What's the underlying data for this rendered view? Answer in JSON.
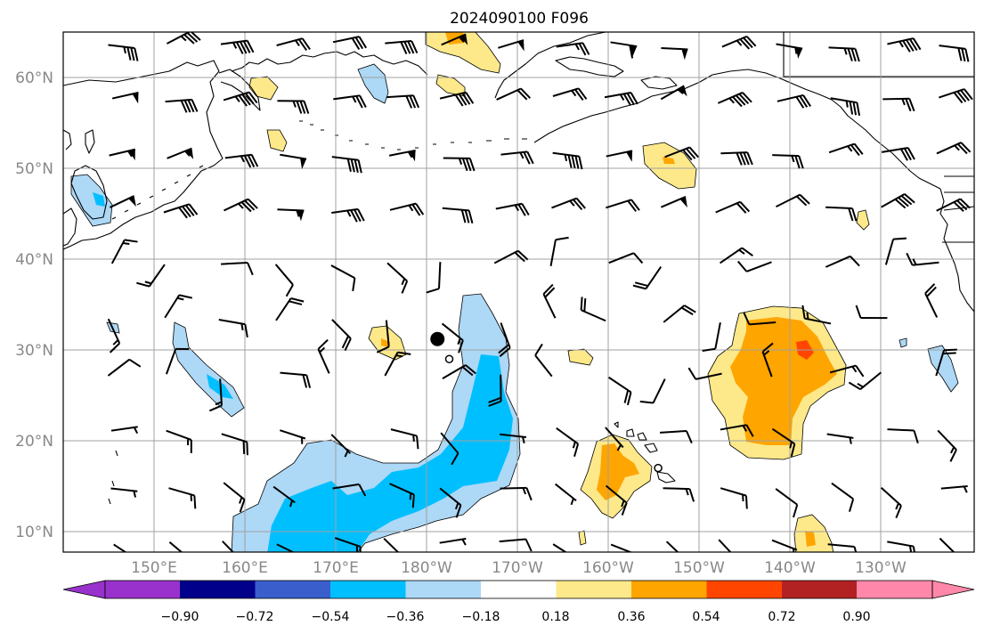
{
  "title": "2024090100 F096",
  "lat_labels": [
    "60°N",
    "50°N",
    "40°N",
    "30°N",
    "20°N",
    "10°N"
  ],
  "lon_labels": [
    "150°E",
    "160°E",
    "170°E",
    "180°W",
    "170°W",
    "160°W",
    "150°W",
    "140°W",
    "130°W"
  ],
  "colorbar": {
    "tick_labels": [
      "−0.90",
      "−0.72",
      "−0.54",
      "−0.36",
      "−0.18",
      "0.18",
      "0.36",
      "0.54",
      "0.72",
      "0.90"
    ],
    "colors": [
      "#9932cc",
      "#00008b",
      "#3a5fcd",
      "#00bfff",
      "#add8f6",
      "#ffffff",
      "#fde98a",
      "#ffa500",
      "#ff4500",
      "#b22222",
      "#ff88aa"
    ]
  },
  "fill_colors": {
    "light_blue": "#add8f6",
    "blue": "#00bfff",
    "light_yellow": "#fde98a",
    "orange": "#ffa500",
    "red_orange": "#ff4500"
  },
  "markers": [
    {
      "name": "storm-center-marker",
      "lon": -178.8,
      "lat": 31.2,
      "kind": "filled"
    },
    {
      "name": "small-circle-marker",
      "lon": -177.5,
      "lat": 29.0,
      "kind": "open"
    },
    {
      "name": "hawaii-circle-marker",
      "lon": -154.5,
      "lat": 17.0,
      "kind": "open"
    }
  ]
}
